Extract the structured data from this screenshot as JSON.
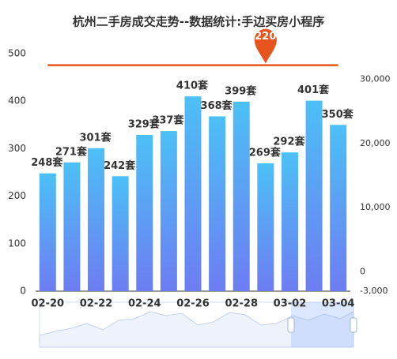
{
  "chart_data": {
    "type": "bar",
    "title": "杭州二手房成交走势--数据统计:手边买房小程序",
    "categories": [
      "02-20",
      null,
      "02-22",
      null,
      "02-24",
      null,
      "02-26",
      null,
      "02-28",
      null,
      "03-02",
      null,
      "03-04"
    ],
    "series": [
      {
        "type": "bar",
        "gradient": [
          "#4cc0f6",
          "#6d7df2"
        ],
        "values": [
          248,
          271,
          301,
          242,
          329,
          337,
          410,
          368,
          399,
          269,
          292,
          401,
          350
        ],
        "value_labels": [
          "248套",
          "271套",
          "301套",
          "242套",
          "329套",
          "337套",
          "410套",
          "368套",
          "399套",
          "269套",
          "292套",
          "401套",
          "350套"
        ]
      },
      {
        "type": "line",
        "axis": "y2",
        "color": "#e8541e",
        "values": [
          32201,
          32201,
          32201,
          32201,
          32201,
          32201,
          32201,
          32201,
          32201,
          32201,
          32201,
          32201,
          32201
        ]
      }
    ],
    "ylim": [
      0,
      500
    ],
    "yticks": [
      0,
      100,
      200,
      300,
      400,
      500
    ],
    "y2lim": [
      -3000,
      34000
    ],
    "y2ticks": [
      {
        "value": -3000,
        "label": "-3,000"
      },
      0,
      {
        "value": 10000,
        "label": "10,000"
      },
      {
        "value": 20000,
        "label": "20,000"
      },
      {
        "value": 30000,
        "label": "30,000"
      }
    ]
  }
}
